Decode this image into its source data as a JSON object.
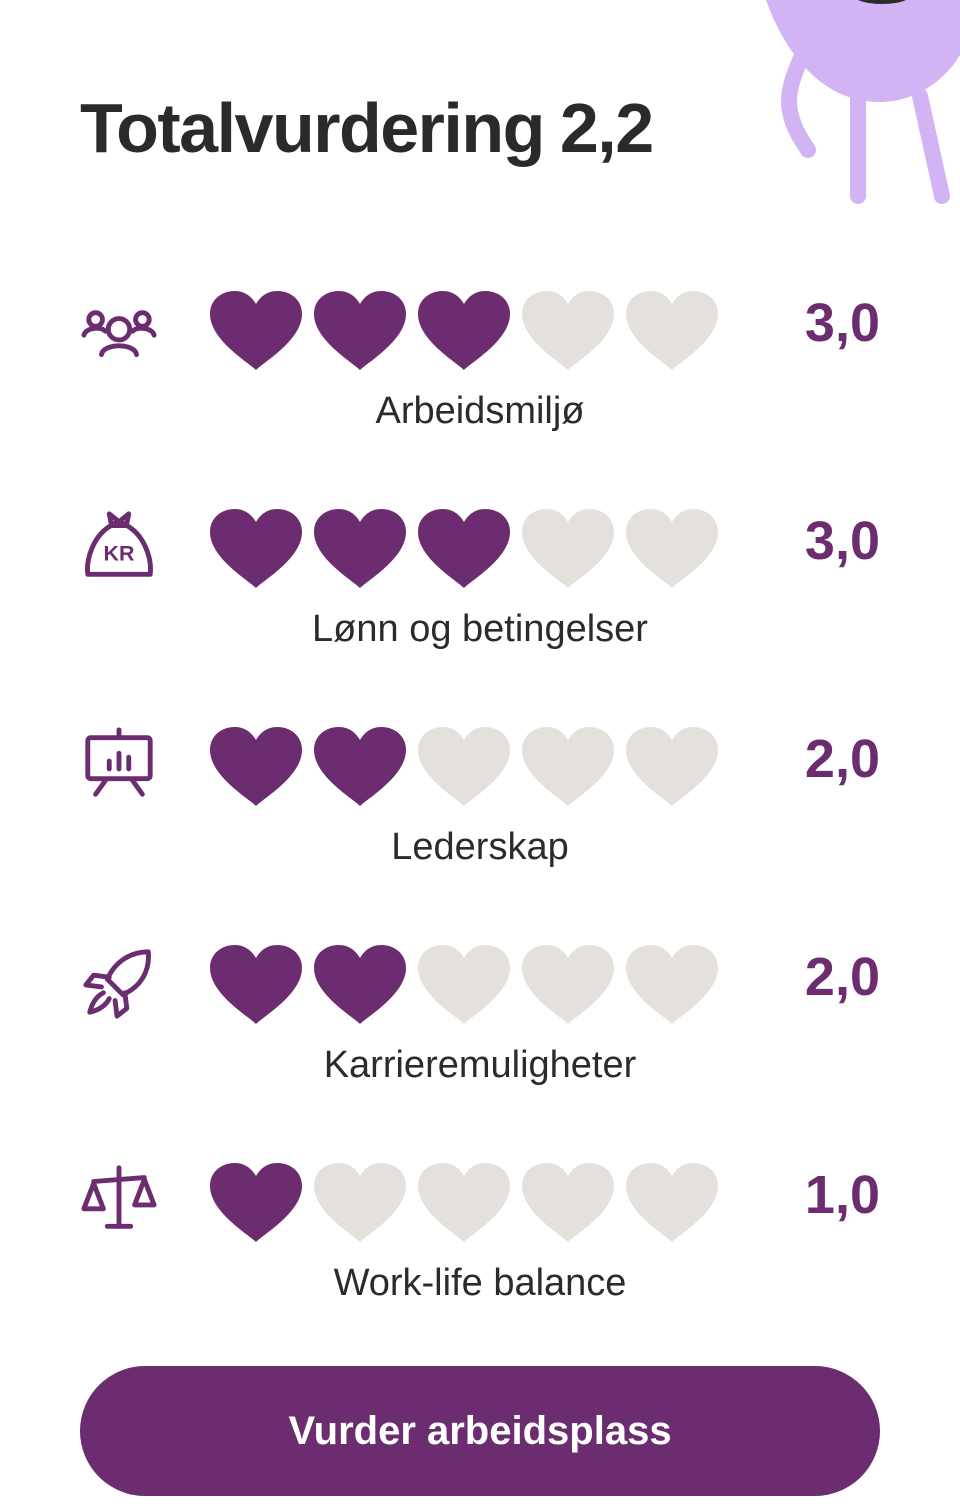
{
  "header": {
    "title": "Totalvurdering",
    "score": "2,2"
  },
  "colors": {
    "accent": "#6b2c70",
    "heart_filled": "#6b2c70",
    "heart_empty": "#e4e1dc",
    "mascot": "#d2b4f5"
  },
  "ratings": [
    {
      "label": "Arbeidsmiljø",
      "value": "3,0",
      "hearts_filled": 3,
      "hearts_total": 5,
      "icon": "people-group-icon"
    },
    {
      "label": "Lønn og betingelser",
      "value": "3,0",
      "hearts_filled": 3,
      "hearts_total": 5,
      "icon": "money-bag-kr-icon"
    },
    {
      "label": "Lederskap",
      "value": "2,0",
      "hearts_filled": 2,
      "hearts_total": 5,
      "icon": "presentation-board-icon"
    },
    {
      "label": "Karrieremuligheter",
      "value": "2,0",
      "hearts_filled": 2,
      "hearts_total": 5,
      "icon": "rocket-icon"
    },
    {
      "label": "Work-life balance",
      "value": "1,0",
      "hearts_filled": 1,
      "hearts_total": 5,
      "icon": "balance-scale-icon"
    }
  ],
  "cta": {
    "label": "Vurder arbeidsplass"
  }
}
